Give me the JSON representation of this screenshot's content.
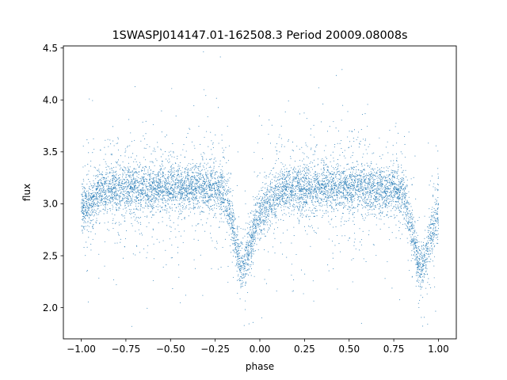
{
  "chart_data": {
    "type": "scatter",
    "title": "1SWASPJ014147.01-162508.3 Period 20009.08008s",
    "xlabel": "phase",
    "ylabel": "flux",
    "xlim": [
      -1.1,
      1.1
    ],
    "ylim": [
      1.7,
      4.52
    ],
    "x_ticks": [
      -1.0,
      -0.75,
      -0.5,
      -0.25,
      0.0,
      0.25,
      0.5,
      0.75,
      1.0
    ],
    "x_tick_labels": [
      "−1.00",
      "−0.75",
      "−0.50",
      "−0.25",
      "0.00",
      "0.25",
      "0.50",
      "0.75",
      "1.00"
    ],
    "y_ticks": [
      2.0,
      2.5,
      3.0,
      3.5,
      4.0,
      4.5
    ],
    "y_tick_labels": [
      "2.0",
      "2.5",
      "3.0",
      "3.5",
      "4.0",
      "4.5"
    ],
    "grid": false,
    "legend": "none",
    "point_color": "#1f77b4",
    "light_curve": {
      "phase_range": [
        -1.0,
        1.0
      ],
      "baseline_flux": 3.15,
      "primary_eclipse_phases": [
        -0.1,
        0.9
      ],
      "primary_eclipse_min_flux": 2.45,
      "secondary_dip_phases": [
        -1.0,
        0.0,
        1.0
      ],
      "secondary_dip_min_flux": 2.95
    }
  }
}
